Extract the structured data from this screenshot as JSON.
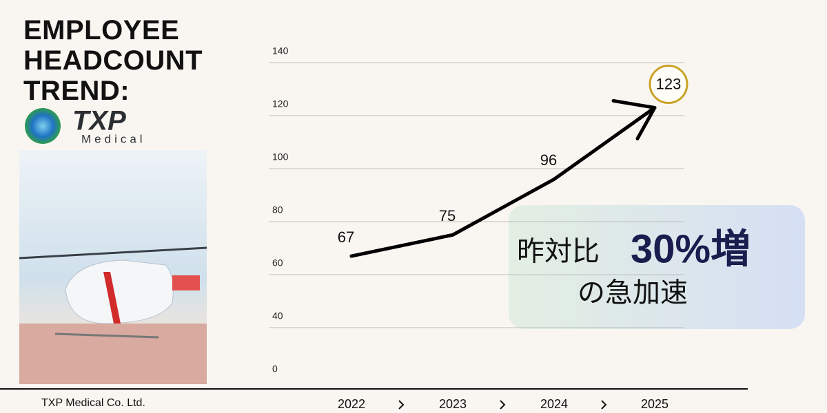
{
  "chart_data": {
    "type": "line",
    "title": "EMPLOYEE HEADCOUNT TREND:",
    "categories": [
      "2022",
      "2023",
      "2024",
      "2025"
    ],
    "series": [
      {
        "name": "Headcount",
        "color": "#000000",
        "values": [
          67,
          75,
          96,
          123
        ]
      }
    ],
    "ylim": [
      0,
      140
    ],
    "yticks": [
      0,
      40,
      60,
      80,
      100,
      120,
      140
    ],
    "grid": true,
    "annotations": [
      "昨対比",
      "30%増",
      "の急加速"
    ]
  },
  "logo": {
    "name": "TXP",
    "sub": "Medical"
  },
  "footer": "TXP Medical Co. Ltd."
}
